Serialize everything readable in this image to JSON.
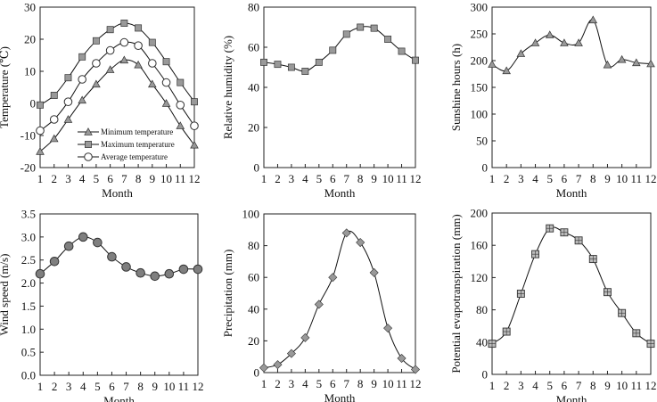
{
  "chart_data": [
    {
      "type": "line",
      "xlabel": "Month",
      "ylabel": "Temperature (℃)",
      "ylim": [
        -20,
        30
      ],
      "yticks": [
        -20,
        -10,
        0,
        10,
        20,
        30
      ],
      "x": [
        1,
        2,
        3,
        4,
        5,
        6,
        7,
        8,
        9,
        10,
        11,
        12
      ],
      "legend_position": "bottom-center",
      "series": [
        {
          "name": "Minimum temperature",
          "marker": "triangle",
          "color": "#999999",
          "values": [
            -15,
            -11,
            -5,
            1,
            6,
            10.5,
            13.5,
            12,
            6,
            0,
            -7,
            -13
          ]
        },
        {
          "name": "Maximum temperature",
          "marker": "square",
          "color": "#999999",
          "values": [
            -0.5,
            2.5,
            8,
            14.5,
            19.5,
            23,
            25,
            23.5,
            19,
            13,
            6.5,
            0.5
          ]
        },
        {
          "name": "Average temperature",
          "marker": "circle-open",
          "color": "#ffffff",
          "values": [
            -8.5,
            -5,
            0.5,
            7.5,
            12.5,
            16.5,
            19,
            18,
            12.5,
            6.5,
            -0.5,
            -7
          ]
        }
      ]
    },
    {
      "type": "line",
      "xlabel": "Month",
      "ylabel": "Relative humidity (%)",
      "ylim": [
        0,
        80
      ],
      "yticks": [
        0,
        20,
        40,
        60,
        80
      ],
      "x": [
        1,
        2,
        3,
        4,
        5,
        6,
        7,
        8,
        9,
        10,
        11,
        12
      ],
      "series": [
        {
          "marker": "square",
          "color": "#999999",
          "values": [
            52.5,
            51.5,
            50,
            48,
            52.5,
            58.5,
            66.5,
            70,
            69.5,
            64,
            58,
            53.5
          ]
        }
      ]
    },
    {
      "type": "line",
      "xlabel": "Month",
      "ylabel": "Sunshine hours (h)",
      "ylim": [
        0,
        300
      ],
      "yticks": [
        0,
        50,
        100,
        150,
        200,
        250,
        300
      ],
      "x": [
        1,
        2,
        3,
        4,
        5,
        6,
        7,
        8,
        9,
        10,
        11,
        12
      ],
      "series": [
        {
          "marker": "triangle",
          "color": "#999999",
          "values": [
            193,
            181,
            213,
            233,
            248,
            233,
            233,
            276,
            192,
            202,
            196,
            194
          ]
        }
      ]
    },
    {
      "type": "line",
      "xlabel": "Month",
      "ylabel": "Wind speed (m/s)",
      "ylim": [
        0,
        3.5
      ],
      "yticks": [
        0,
        0.5,
        1.0,
        1.5,
        2.0,
        2.5,
        3.0,
        3.5
      ],
      "x": [
        1,
        2,
        3,
        4,
        5,
        6,
        7,
        8,
        9,
        10,
        11,
        12
      ],
      "series": [
        {
          "marker": "circle",
          "color": "#7f7f7f",
          "values": [
            2.2,
            2.47,
            2.8,
            3.0,
            2.88,
            2.57,
            2.35,
            2.22,
            2.15,
            2.2,
            2.3,
            2.3
          ]
        }
      ]
    },
    {
      "type": "line",
      "xlabel": "Month",
      "ylabel": "Precipitation (mm)",
      "ylim": [
        0,
        100
      ],
      "yticks": [
        0,
        20,
        40,
        60,
        80,
        100
      ],
      "x": [
        1,
        2,
        3,
        4,
        5,
        6,
        7,
        8,
        9,
        10,
        11,
        12
      ],
      "series": [
        {
          "marker": "diamond",
          "color": "#999999",
          "values": [
            3,
            5,
            12,
            22,
            43,
            60,
            88,
            82,
            63,
            28,
            9,
            2
          ]
        }
      ]
    },
    {
      "type": "line",
      "xlabel": "Month",
      "ylabel": "Potential evapotranspiration (mm)",
      "ylim": [
        0,
        200
      ],
      "yticks": [
        0,
        40,
        80,
        120,
        160,
        200
      ],
      "x": [
        1,
        2,
        3,
        4,
        5,
        6,
        7,
        8,
        9,
        10,
        11,
        12
      ],
      "series": [
        {
          "marker": "square-grid",
          "color": "#bbbbbb",
          "values": [
            38,
            53,
            100,
            149,
            181,
            176,
            166,
            143,
            102,
            76,
            51,
            38
          ]
        }
      ]
    }
  ]
}
